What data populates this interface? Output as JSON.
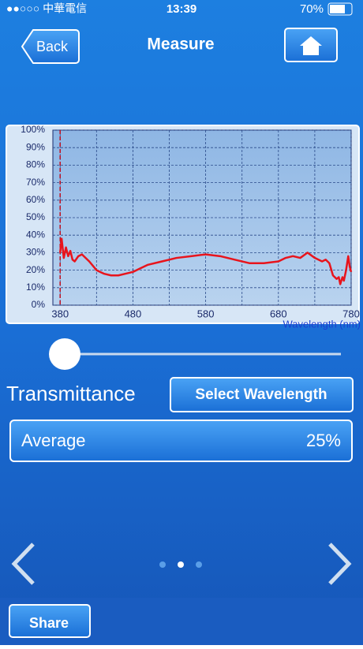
{
  "status_bar": {
    "carrier": "●●○○○ 中華電信",
    "time": "13:39",
    "battery": "70%"
  },
  "nav": {
    "back": "Back",
    "title": "Measure"
  },
  "chart_data": {
    "type": "line",
    "x_label": "Wavelength (nm)",
    "x": [
      380,
      382,
      385,
      388,
      391,
      394,
      397,
      400,
      405,
      410,
      420,
      430,
      440,
      450,
      460,
      470,
      480,
      490,
      500,
      520,
      540,
      560,
      580,
      600,
      620,
      640,
      660,
      680,
      690,
      700,
      710,
      720,
      730,
      740,
      745,
      750,
      755,
      760,
      763,
      765,
      768,
      770,
      773,
      776,
      778,
      780
    ],
    "series": [
      {
        "color": "#e8141c",
        "values": [
          30,
          38,
          27,
          33,
          28,
          31,
          26,
          25,
          28,
          29,
          25,
          20,
          18,
          17,
          17,
          18,
          19,
          21,
          23,
          25,
          27,
          28,
          29,
          28,
          26,
          24,
          24,
          25,
          27,
          28,
          27,
          30,
          27,
          25,
          26,
          24,
          17,
          15,
          16,
          12,
          16,
          14,
          20,
          28,
          22,
          19
        ]
      }
    ],
    "xlim": [
      370,
      780
    ],
    "ylim": [
      0,
      100
    ],
    "xticks": [
      380,
      480,
      580,
      680,
      780
    ],
    "yticks": [
      {
        "value": 0,
        "label": "0%"
      },
      {
        "value": 10,
        "label": "10%"
      },
      {
        "value": 20,
        "label": "20%"
      },
      {
        "value": 30,
        "label": "30%"
      },
      {
        "value": 40,
        "label": "40%"
      },
      {
        "value": 50,
        "label": "50%"
      },
      {
        "value": 60,
        "label": "60%"
      },
      {
        "value": 70,
        "label": "70%"
      },
      {
        "value": 80,
        "label": "80%"
      },
      {
        "value": 90,
        "label": "90%"
      },
      {
        "value": 100,
        "label": "100%"
      }
    ],
    "grid": true
  },
  "controls": {
    "mode": "Transmittance",
    "select_button": "Select Wavelength",
    "average_label": "Average",
    "average_value": "25%",
    "share": "Share"
  }
}
